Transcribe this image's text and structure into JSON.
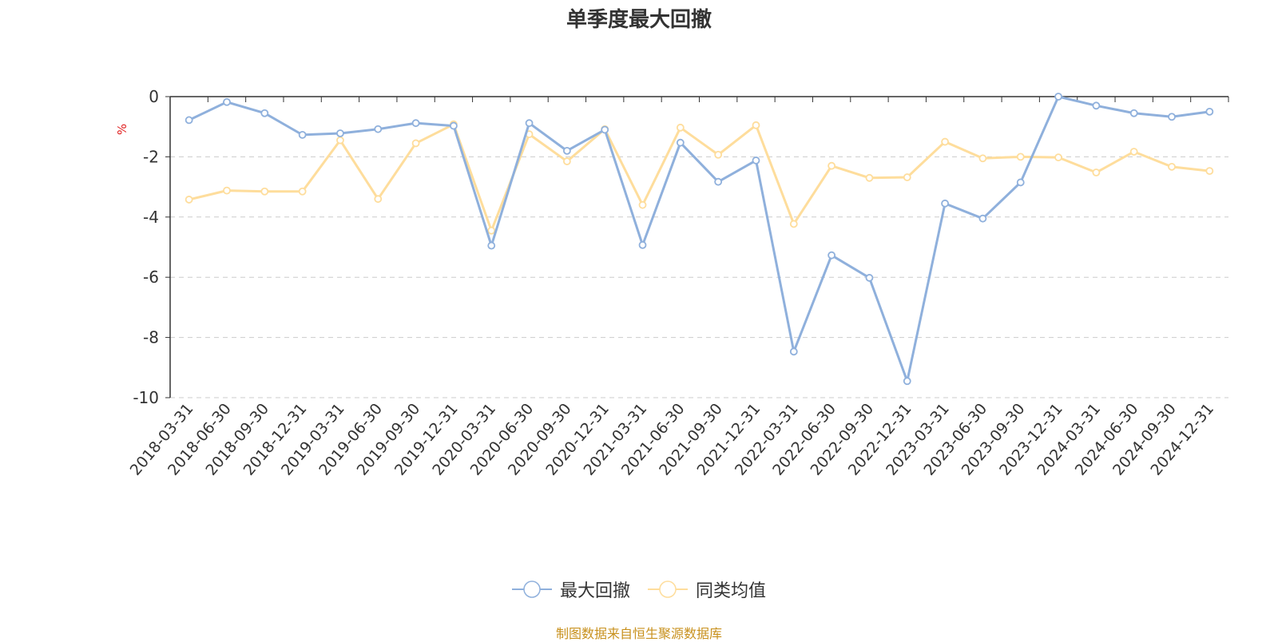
{
  "chart_data": {
    "type": "line",
    "title": "单季度最大回撤",
    "ylabel": "%",
    "xlabel": "",
    "ylim": [
      -10,
      0
    ],
    "yticks": [
      0,
      -2,
      -4,
      -6,
      -8,
      -10
    ],
    "grid": true,
    "legend_position": "bottom-center",
    "categories": [
      "2018-03-31",
      "2018-06-30",
      "2018-09-30",
      "2018-12-31",
      "2019-03-31",
      "2019-06-30",
      "2019-09-30",
      "2019-12-31",
      "2020-03-31",
      "2020-06-30",
      "2020-09-30",
      "2020-12-31",
      "2021-03-31",
      "2021-06-30",
      "2021-09-30",
      "2021-12-31",
      "2022-03-31",
      "2022-06-30",
      "2022-09-30",
      "2022-12-31",
      "2023-03-31",
      "2023-06-30",
      "2023-09-30",
      "2023-12-31",
      "2024-03-31",
      "2024-06-30",
      "2024-09-30",
      "2024-12-31"
    ],
    "series": [
      {
        "name": "最大回撤",
        "color": "#8fb0dc",
        "values": [
          -0.78,
          -0.18,
          -0.55,
          -1.27,
          -1.22,
          -1.08,
          -0.88,
          -0.97,
          -4.95,
          -0.88,
          -1.8,
          -1.1,
          -4.93,
          -1.53,
          -2.83,
          -2.12,
          -8.47,
          -5.27,
          -6.02,
          -9.45,
          -3.55,
          -4.05,
          -2.85,
          0,
          -0.3,
          -0.55,
          -0.67,
          -0.5
        ]
      },
      {
        "name": "同类均值",
        "color": "#fedd9c",
        "values": [
          -3.42,
          -3.12,
          -3.15,
          -3.15,
          -1.45,
          -3.4,
          -1.55,
          -0.92,
          -4.45,
          -1.25,
          -2.15,
          -1.08,
          -3.6,
          -1.03,
          -1.93,
          -0.95,
          -4.23,
          -2.3,
          -2.7,
          -2.68,
          -1.5,
          -2.05,
          -2.0,
          -2.02,
          -2.52,
          -1.83,
          -2.33,
          -2.47
        ]
      }
    ]
  },
  "source": "制图数据来自恒生聚源数据库"
}
